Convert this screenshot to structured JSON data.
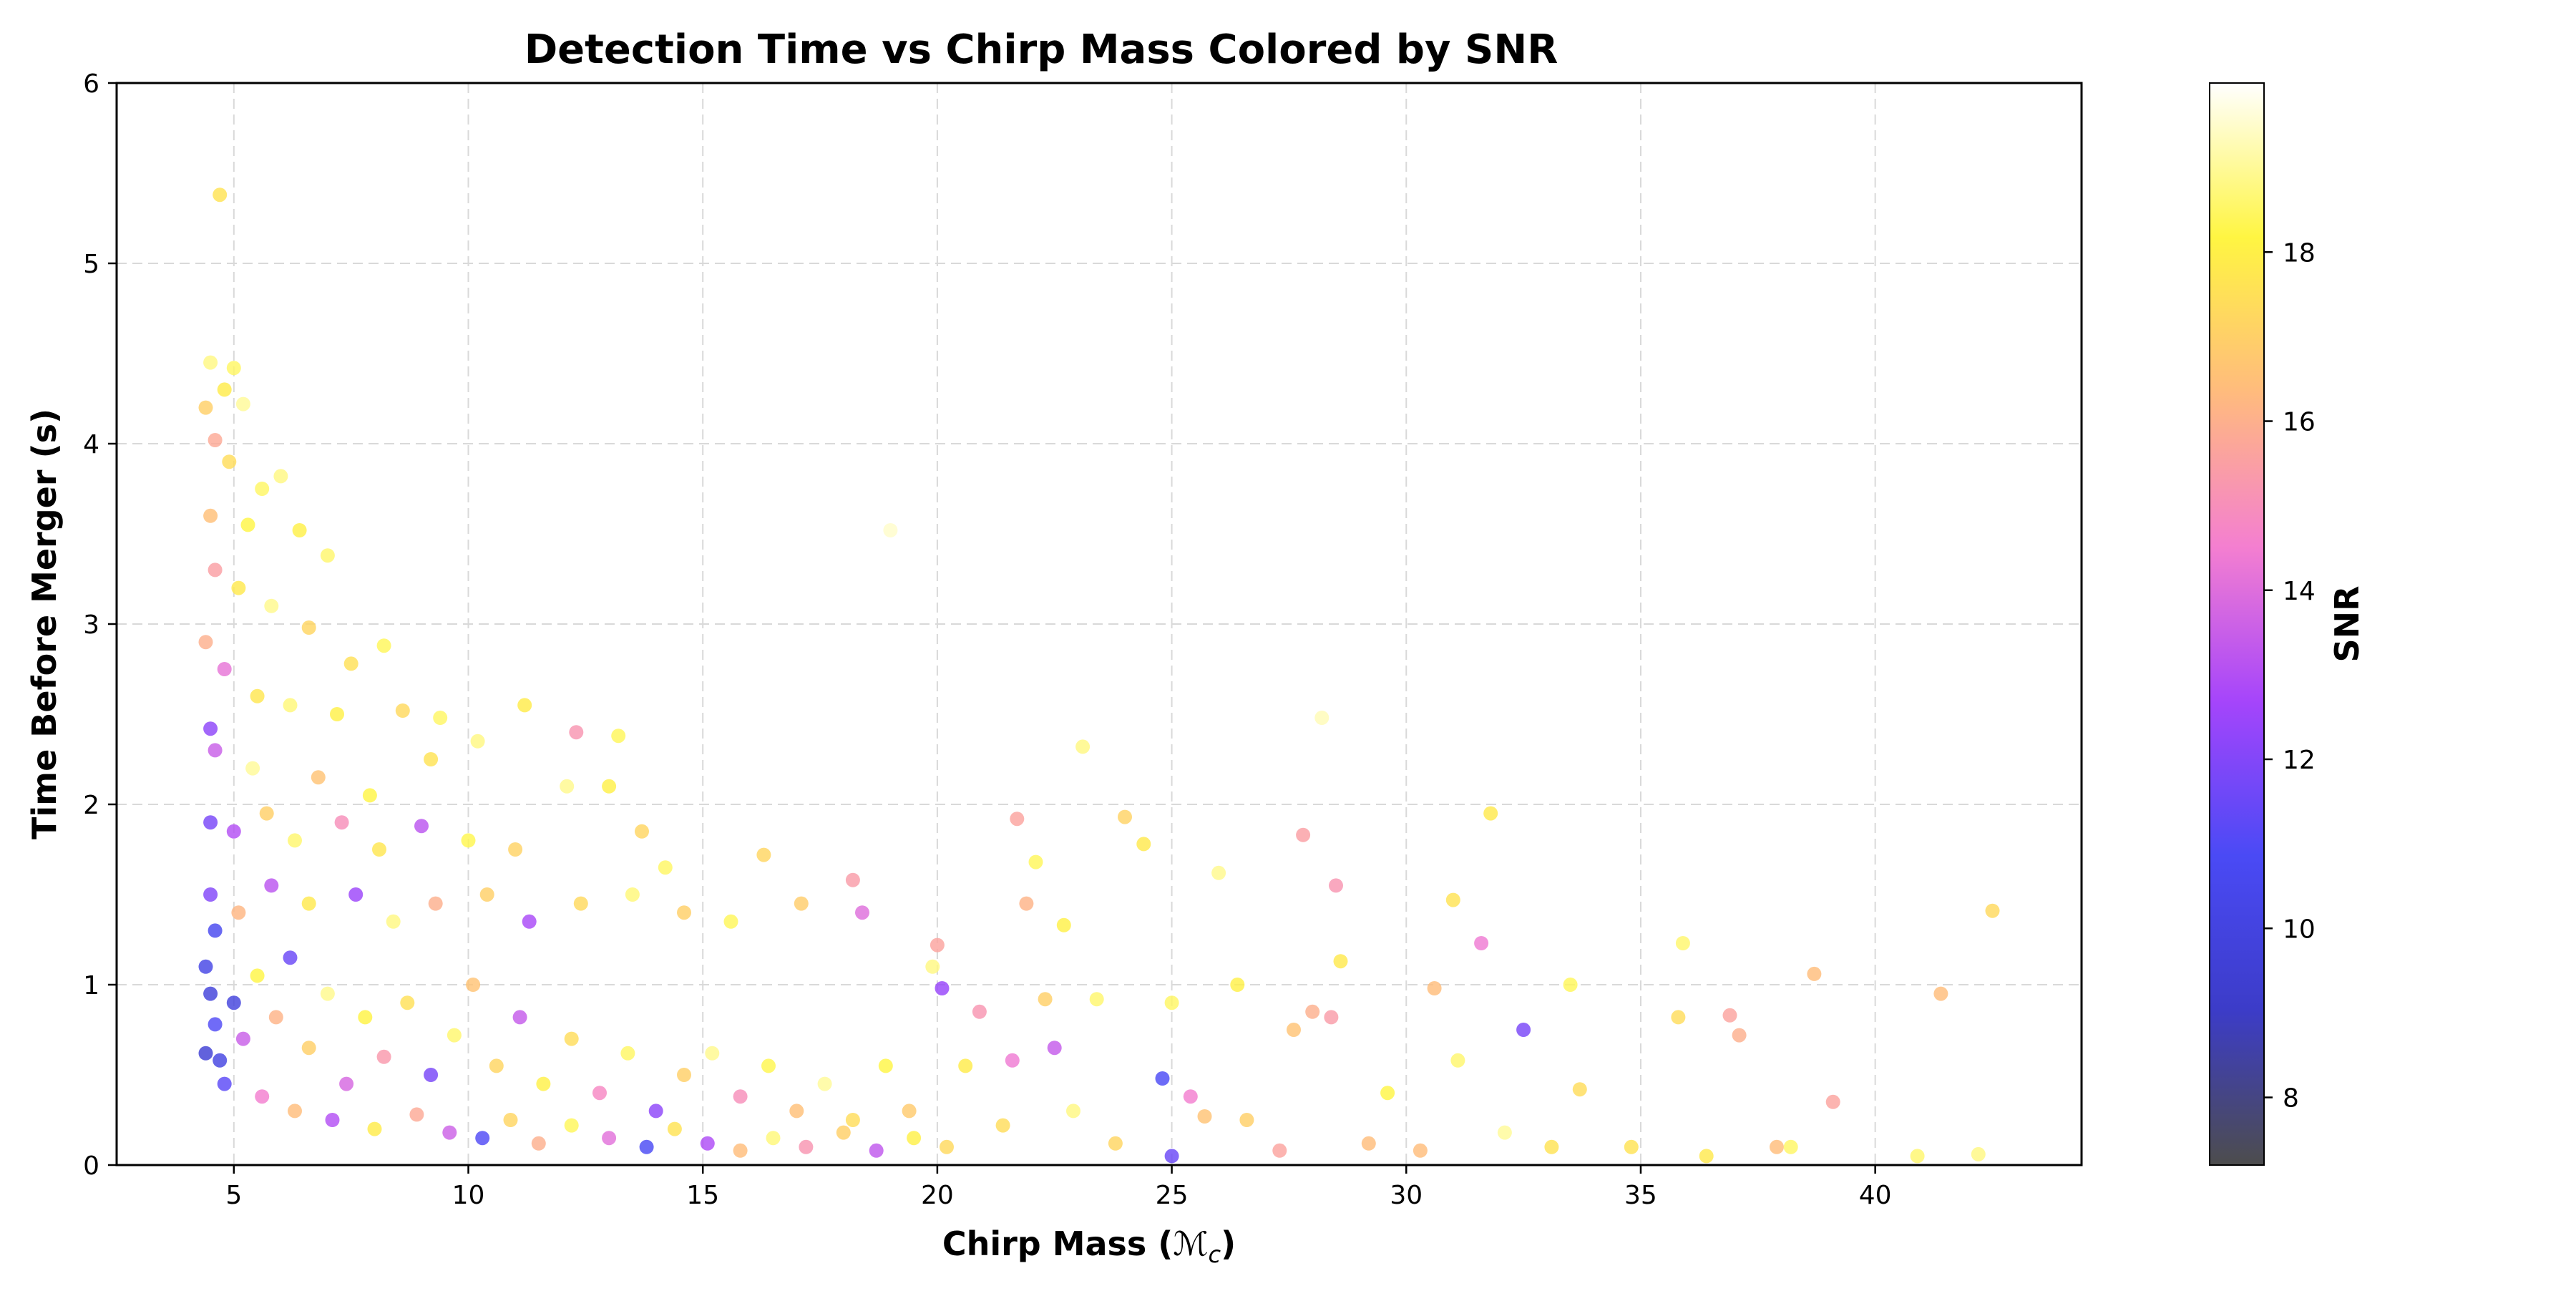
{
  "chart_data": {
    "type": "scatter",
    "title": "Detection Time vs Chirp Mass Colored by SNR",
    "xlabel": "Chirp Mass (",
    "xlabel_symbol": "ℳ",
    "xlabel_subscript": "c",
    "xlabel_suffix": ")",
    "ylabel": "Time Before Merger (s)",
    "xlim": [
      2.5,
      44.4
    ],
    "ylim": [
      0,
      6
    ],
    "x_ticks": [
      5,
      10,
      15,
      20,
      25,
      30,
      35,
      40
    ],
    "x_tick_labels": [
      "5",
      "10",
      "15",
      "20",
      "25",
      "30",
      "35",
      "40"
    ],
    "y_ticks": [
      0,
      1,
      2,
      3,
      4,
      5,
      6
    ],
    "y_tick_labels": [
      "0",
      "1",
      "2",
      "3",
      "4",
      "5",
      "6"
    ],
    "grid": true,
    "colorbar": {
      "label": "SNR",
      "range": [
        7.2,
        20.0
      ],
      "ticks": [
        8,
        10,
        12,
        14,
        16,
        18
      ],
      "tick_labels": [
        "8",
        "10",
        "12",
        "14",
        "16",
        "18"
      ],
      "colormap": [
        "#4d4d4d",
        "#3c3cc8",
        "#4a4af5",
        "#a545fb",
        "#f47fd0",
        "#ffbb7d",
        "#fff542",
        "#ffffff"
      ]
    },
    "series": [
      {
        "name": "events",
        "note": "Representative points read from the figure as [chirp_mass, time_before_merger_s, snr]",
        "points": [
          [
            4.7,
            5.38,
            17.6
          ],
          [
            4.5,
            4.45,
            18.8
          ],
          [
            4.8,
            4.3,
            17.9
          ],
          [
            5.0,
            4.42,
            18.5
          ],
          [
            4.4,
            4.2,
            17.0
          ],
          [
            4.6,
            4.02,
            15.8
          ],
          [
            5.2,
            4.22,
            19.0
          ],
          [
            6.0,
            3.82,
            18.8
          ],
          [
            5.6,
            3.75,
            18.5
          ],
          [
            4.9,
            3.9,
            17.4
          ],
          [
            4.5,
            3.6,
            16.5
          ],
          [
            5.3,
            3.55,
            18.2
          ],
          [
            6.4,
            3.52,
            18.0
          ],
          [
            7.0,
            3.38,
            18.6
          ],
          [
            4.6,
            3.3,
            15.5
          ],
          [
            5.1,
            3.2,
            17.8
          ],
          [
            5.8,
            3.1,
            18.9
          ],
          [
            6.6,
            2.98,
            17.2
          ],
          [
            7.5,
            2.78,
            17.5
          ],
          [
            8.2,
            2.88,
            18.4
          ],
          [
            4.4,
            2.9,
            16.0
          ],
          [
            4.8,
            2.75,
            14.2
          ],
          [
            5.5,
            2.6,
            17.7
          ],
          [
            6.2,
            2.55,
            18.7
          ],
          [
            7.2,
            2.5,
            18.0
          ],
          [
            8.6,
            2.52,
            17.3
          ],
          [
            9.4,
            2.48,
            18.5
          ],
          [
            4.5,
            2.42,
            12.2
          ],
          [
            4.6,
            2.3,
            13.5
          ],
          [
            5.4,
            2.2,
            19.0
          ],
          [
            6.8,
            2.15,
            16.6
          ],
          [
            7.9,
            2.05,
            18.2
          ],
          [
            9.2,
            2.25,
            17.6
          ],
          [
            10.2,
            2.35,
            18.8
          ],
          [
            11.2,
            2.55,
            17.9
          ],
          [
            12.3,
            2.4,
            15.2
          ],
          [
            13.2,
            2.38,
            18.4
          ],
          [
            4.5,
            1.9,
            11.8
          ],
          [
            5.0,
            1.85,
            13.0
          ],
          [
            5.7,
            1.95,
            17.0
          ],
          [
            6.3,
            1.8,
            18.6
          ],
          [
            7.3,
            1.9,
            15.0
          ],
          [
            8.1,
            1.75,
            17.7
          ],
          [
            9.0,
            1.88,
            13.2
          ],
          [
            10.0,
            1.8,
            18.3
          ],
          [
            11.0,
            1.75,
            17.1
          ],
          [
            12.1,
            2.1,
            18.9
          ],
          [
            13.0,
            2.1,
            18.0
          ],
          [
            13.7,
            1.85,
            17.2
          ],
          [
            14.2,
            1.65,
            18.5
          ],
          [
            4.5,
            1.5,
            12.0
          ],
          [
            4.6,
            1.3,
            10.6
          ],
          [
            5.1,
            1.4,
            16.2
          ],
          [
            5.8,
            1.55,
            13.2
          ],
          [
            6.6,
            1.45,
            17.8
          ],
          [
            7.6,
            1.5,
            12.5
          ],
          [
            8.4,
            1.35,
            18.8
          ],
          [
            9.3,
            1.45,
            16.0
          ],
          [
            10.4,
            1.5,
            17.0
          ],
          [
            11.3,
            1.35,
            12.8
          ],
          [
            12.4,
            1.45,
            17.3
          ],
          [
            13.5,
            1.5,
            18.7
          ],
          [
            14.6,
            1.4,
            17.0
          ],
          [
            15.6,
            1.35,
            18.4
          ],
          [
            16.3,
            1.72,
            17.2
          ],
          [
            17.1,
            1.45,
            16.9
          ],
          [
            18.2,
            1.58,
            15.4
          ],
          [
            18.4,
            1.4,
            14.0
          ],
          [
            19.0,
            3.52,
            19.5
          ],
          [
            19.9,
            1.1,
            18.8
          ],
          [
            4.4,
            1.1,
            10.2
          ],
          [
            4.5,
            0.95,
            9.8
          ],
          [
            4.6,
            0.78,
            11.0
          ],
          [
            4.4,
            0.62,
            9.5
          ],
          [
            4.7,
            0.58,
            10.1
          ],
          [
            5.0,
            0.9,
            9.9
          ],
          [
            5.2,
            0.7,
            13.5
          ],
          [
            5.5,
            1.05,
            18.2
          ],
          [
            5.9,
            0.82,
            16.1
          ],
          [
            6.2,
            1.15,
            11.5
          ],
          [
            6.6,
            0.65,
            17.0
          ],
          [
            7.0,
            0.95,
            18.9
          ],
          [
            7.4,
            0.45,
            13.8
          ],
          [
            7.8,
            0.82,
            18.1
          ],
          [
            8.2,
            0.6,
            15.3
          ],
          [
            8.7,
            0.9,
            17.5
          ],
          [
            9.2,
            0.5,
            11.8
          ],
          [
            9.7,
            0.72,
            18.6
          ],
          [
            10.1,
            1.0,
            16.6
          ],
          [
            10.6,
            0.55,
            17.2
          ],
          [
            11.1,
            0.82,
            13.4
          ],
          [
            11.6,
            0.45,
            18.0
          ],
          [
            12.2,
            0.7,
            17.4
          ],
          [
            12.8,
            0.4,
            14.8
          ],
          [
            13.4,
            0.62,
            18.5
          ],
          [
            14.0,
            0.3,
            12.2
          ],
          [
            14.6,
            0.5,
            17.0
          ],
          [
            15.2,
            0.62,
            18.9
          ],
          [
            15.8,
            0.38,
            15.0
          ],
          [
            16.4,
            0.55,
            18.3
          ],
          [
            17.0,
            0.3,
            16.5
          ],
          [
            17.6,
            0.45,
            19.0
          ],
          [
            18.2,
            0.25,
            17.4
          ],
          [
            18.9,
            0.55,
            18.2
          ],
          [
            19.4,
            0.3,
            16.8
          ],
          [
            4.8,
            0.45,
            11.2
          ],
          [
            5.6,
            0.38,
            14.5
          ],
          [
            6.3,
            0.3,
            16.4
          ],
          [
            7.1,
            0.25,
            13.0
          ],
          [
            8.0,
            0.2,
            17.9
          ],
          [
            8.9,
            0.28,
            15.8
          ],
          [
            9.6,
            0.18,
            13.6
          ],
          [
            10.3,
            0.15,
            11.0
          ],
          [
            10.9,
            0.25,
            17.2
          ],
          [
            11.5,
            0.12,
            16.0
          ],
          [
            12.2,
            0.22,
            18.4
          ],
          [
            13.0,
            0.15,
            14.1
          ],
          [
            13.8,
            0.1,
            10.8
          ],
          [
            14.4,
            0.2,
            17.6
          ],
          [
            15.1,
            0.12,
            12.9
          ],
          [
            15.8,
            0.08,
            16.4
          ],
          [
            16.5,
            0.15,
            18.7
          ],
          [
            17.2,
            0.1,
            15.2
          ],
          [
            18.0,
            0.18,
            17.0
          ],
          [
            18.7,
            0.08,
            13.3
          ],
          [
            19.5,
            0.15,
            18.0
          ],
          [
            20.2,
            0.1,
            17.3
          ],
          [
            20.0,
            1.22,
            15.6
          ],
          [
            20.1,
            0.98,
            12.4
          ],
          [
            20.6,
            0.55,
            17.9
          ],
          [
            20.9,
            0.85,
            15.2
          ],
          [
            21.4,
            0.22,
            17.4
          ],
          [
            21.6,
            0.58,
            14.4
          ],
          [
            21.7,
            1.92,
            15.6
          ],
          [
            21.9,
            1.45,
            16.1
          ],
          [
            22.1,
            1.68,
            18.4
          ],
          [
            22.3,
            0.92,
            17.0
          ],
          [
            22.5,
            0.65,
            13.4
          ],
          [
            22.7,
            1.33,
            18.0
          ],
          [
            22.9,
            0.3,
            18.8
          ],
          [
            23.1,
            2.32,
            18.8
          ],
          [
            23.4,
            0.92,
            18.6
          ],
          [
            23.8,
            0.12,
            17.2
          ],
          [
            24.0,
            1.93,
            17.1
          ],
          [
            24.4,
            1.78,
            17.8
          ],
          [
            24.8,
            0.48,
            10.9
          ],
          [
            25.0,
            0.9,
            18.5
          ],
          [
            25.0,
            0.05,
            11.5
          ],
          [
            25.4,
            0.38,
            14.5
          ],
          [
            25.7,
            0.27,
            16.6
          ],
          [
            26.0,
            1.62,
            18.9
          ],
          [
            26.4,
            1.0,
            18.0
          ],
          [
            26.6,
            0.25,
            17.0
          ],
          [
            27.3,
            0.08,
            15.6
          ],
          [
            27.6,
            0.75,
            16.6
          ],
          [
            27.8,
            1.83,
            15.5
          ],
          [
            28.0,
            0.85,
            16.0
          ],
          [
            28.2,
            2.48,
            19.3
          ],
          [
            28.4,
            0.82,
            15.4
          ],
          [
            28.5,
            1.55,
            15.2
          ],
          [
            28.6,
            1.13,
            17.8
          ],
          [
            29.2,
            0.12,
            16.4
          ],
          [
            29.6,
            0.4,
            18.2
          ],
          [
            30.3,
            0.08,
            16.4
          ],
          [
            30.6,
            0.98,
            16.4
          ],
          [
            31.0,
            1.47,
            17.6
          ],
          [
            31.1,
            0.58,
            18.6
          ],
          [
            31.6,
            1.23,
            14.4
          ],
          [
            31.8,
            1.95,
            17.8
          ],
          [
            32.1,
            0.18,
            19.0
          ],
          [
            32.5,
            0.75,
            11.8
          ],
          [
            33.1,
            0.1,
            17.6
          ],
          [
            33.5,
            1.0,
            18.4
          ],
          [
            33.7,
            0.42,
            17.4
          ],
          [
            34.8,
            0.1,
            17.6
          ],
          [
            35.8,
            0.82,
            17.4
          ],
          [
            35.9,
            1.23,
            18.6
          ],
          [
            36.4,
            0.05,
            17.8
          ],
          [
            36.9,
            0.83,
            15.6
          ],
          [
            37.1,
            0.72,
            16.0
          ],
          [
            37.9,
            0.1,
            16.4
          ],
          [
            38.2,
            0.1,
            18.5
          ],
          [
            38.7,
            1.06,
            16.4
          ],
          [
            39.1,
            0.35,
            15.6
          ],
          [
            40.9,
            0.05,
            18.6
          ],
          [
            41.4,
            0.95,
            16.4
          ],
          [
            42.2,
            0.06,
            18.8
          ],
          [
            42.5,
            1.41,
            17.3
          ]
        ]
      }
    ]
  }
}
